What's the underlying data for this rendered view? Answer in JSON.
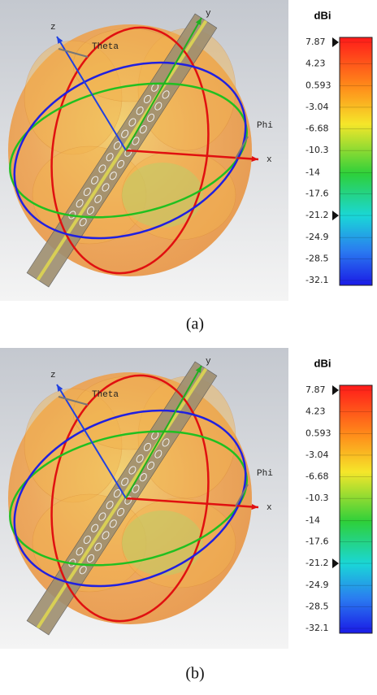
{
  "panels": [
    {
      "label": "(a)",
      "axes": {
        "x": "x",
        "y": "y",
        "z": "z",
        "theta": "Theta",
        "phi": "Phi"
      },
      "colorbar": {
        "unit": "dBi",
        "lim": [
          -32.1,
          7.87
        ],
        "ticks": [
          7.87,
          4.23,
          0.593,
          -3.04,
          -6.68,
          -10.3,
          -14,
          -17.6,
          -21.2,
          -24.9,
          -28.5,
          -32.1
        ],
        "markers": [
          7.87,
          -21.2
        ]
      }
    },
    {
      "label": "(b)",
      "axes": {
        "x": "x",
        "y": "y",
        "z": "z",
        "theta": "Theta",
        "phi": "Phi"
      },
      "colorbar": {
        "unit": "dBi",
        "lim": [
          -32.1,
          7.87
        ],
        "ticks": [
          7.87,
          4.23,
          0.593,
          -3.04,
          -6.68,
          -10.3,
          -14,
          -17.6,
          -21.2,
          -24.9,
          -28.5,
          -32.1
        ],
        "markers": [
          7.87,
          -21.2
        ]
      }
    }
  ]
}
